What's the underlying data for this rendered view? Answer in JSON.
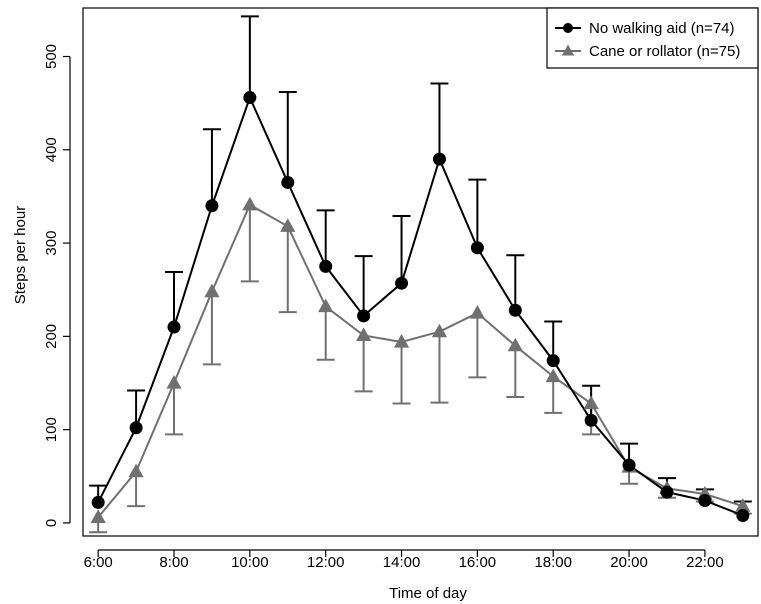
{
  "chart_data": {
    "type": "line",
    "xlabel": "Time of day",
    "ylabel": "Steps per hour",
    "x": [
      6,
      7,
      8,
      9,
      10,
      11,
      12,
      13,
      14,
      15,
      16,
      17,
      18,
      19,
      20,
      21,
      22,
      23
    ],
    "xticks": [
      6,
      8,
      10,
      12,
      14,
      16,
      18,
      20,
      22
    ],
    "xtick_labels": [
      "6:00",
      "8:00",
      "10:00",
      "12:00",
      "14:00",
      "16:00",
      "18:00",
      "20:00",
      "22:00"
    ],
    "yticks": [
      0,
      100,
      200,
      300,
      400,
      500
    ],
    "yticks_labels": [
      "0",
      "100",
      "200",
      "300",
      "400",
      "500"
    ],
    "xlim": [
      5.6,
      23.4
    ],
    "ylim": [
      -14,
      552
    ],
    "grid": false,
    "legend_position": "top-right",
    "series": [
      {
        "name": "No walking aid (n=74)",
        "marker": "circle",
        "color": "#000000",
        "values": [
          22,
          102,
          210,
          340,
          456,
          365,
          275,
          222,
          257,
          390,
          295,
          228,
          174,
          110,
          62,
          33,
          24,
          8
        ],
        "error_upper": [
          40,
          142,
          269,
          422,
          543,
          462,
          335,
          286,
          329,
          471,
          368,
          287,
          216,
          147,
          85,
          48,
          36,
          23
        ]
      },
      {
        "name": "Cane or rollator (n=75)",
        "marker": "triangle",
        "color": "#707070",
        "values": [
          6,
          55,
          150,
          248,
          341,
          318,
          232,
          201,
          194,
          205,
          225,
          190,
          157,
          128,
          60,
          37,
          31,
          18
        ],
        "error_lower": [
          -10,
          18,
          95,
          170,
          259,
          226,
          175,
          141,
          128,
          129,
          156,
          135,
          118,
          95,
          42,
          27,
          23,
          10
        ]
      }
    ]
  }
}
